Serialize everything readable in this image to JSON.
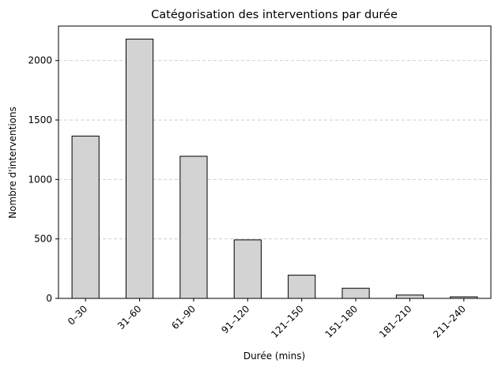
{
  "chart_data": {
    "type": "bar",
    "title": "Catégorisation des interventions par durée",
    "xlabel": "Durée (mins)",
    "ylabel": "Nombre d'interventions",
    "categories": [
      "0–30",
      "31–60",
      "61–90",
      "91–120",
      "121–150",
      "151–180",
      "181–210",
      "211–240"
    ],
    "values": [
      1365,
      2180,
      1195,
      492,
      195,
      85,
      28,
      13
    ],
    "ylim": [
      0,
      2290
    ],
    "yticks": [
      0,
      500,
      1000,
      1500,
      2000
    ],
    "grid": "y-dashed",
    "colors": {
      "bar_fill": "#d3d3d3",
      "bar_edge": "#000000",
      "grid": "#c8c8c8"
    }
  }
}
